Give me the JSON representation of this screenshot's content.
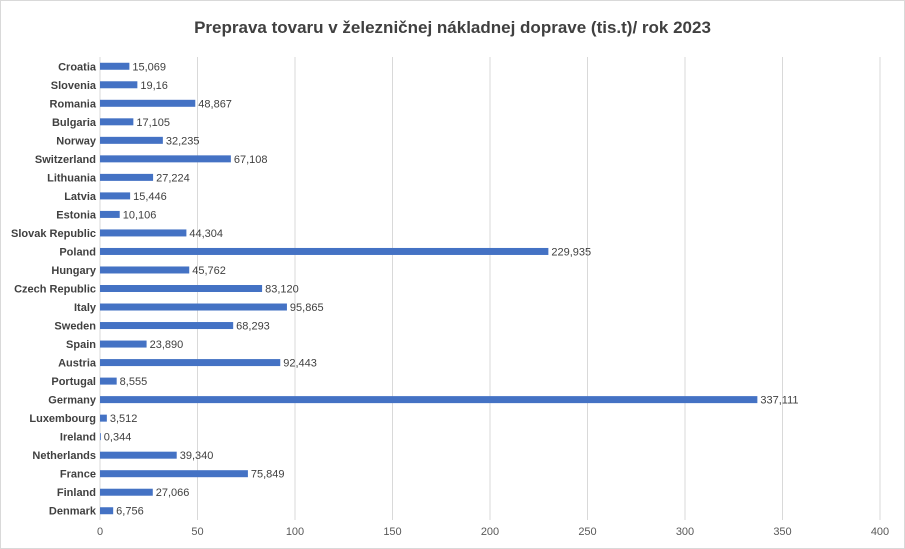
{
  "chart_data": {
    "type": "bar",
    "orientation": "horizontal",
    "title": "Preprava tovaru v železničnej nákladnej doprave (tis.t)/ rok 2023",
    "categories": [
      "Croatia",
      "Slovenia",
      "Romania",
      "Bulgaria",
      "Norway",
      "Switzerland",
      "Lithuania",
      "Latvia",
      "Estonia",
      "Slovak Republic",
      "Poland",
      "Hungary",
      "Czech Republic",
      "Italy",
      "Sweden",
      "Spain",
      "Austria",
      "Portugal",
      "Germany",
      "Luxembourg",
      "Ireland",
      "Netherlands",
      "France",
      "Finland",
      "Denmark"
    ],
    "values": [
      15.069,
      19.16,
      48.867,
      17.105,
      32.235,
      67.108,
      27.224,
      15.446,
      10.106,
      44.304,
      229.935,
      45.762,
      83.12,
      95.865,
      68.293,
      23.89,
      92.443,
      8.555,
      337.111,
      3.512,
      0.344,
      39.34,
      75.849,
      27.066,
      6.756
    ],
    "value_labels": [
      "15,069",
      "19,16",
      "48,867",
      "17,105",
      "32,235",
      "67,108",
      "27,224",
      "15,446",
      "10,106",
      "44,304",
      "229,935",
      "45,762",
      "83,120",
      "95,865",
      "68,293",
      "23,890",
      "92,443",
      "8,555",
      "337,111",
      "3,512",
      "0,344",
      "39,340",
      "75,849",
      "27,066",
      "6,756"
    ],
    "xlim": [
      0,
      400
    ],
    "xticks": [
      "0",
      "50",
      "100",
      "150",
      "200",
      "250",
      "300",
      "350",
      "400"
    ],
    "xtick_values": [
      0,
      50,
      100,
      150,
      200,
      250,
      300,
      350,
      400
    ],
    "grid": true,
    "bar_color": "#4472c4",
    "grid_color": "#d9d9d9"
  }
}
